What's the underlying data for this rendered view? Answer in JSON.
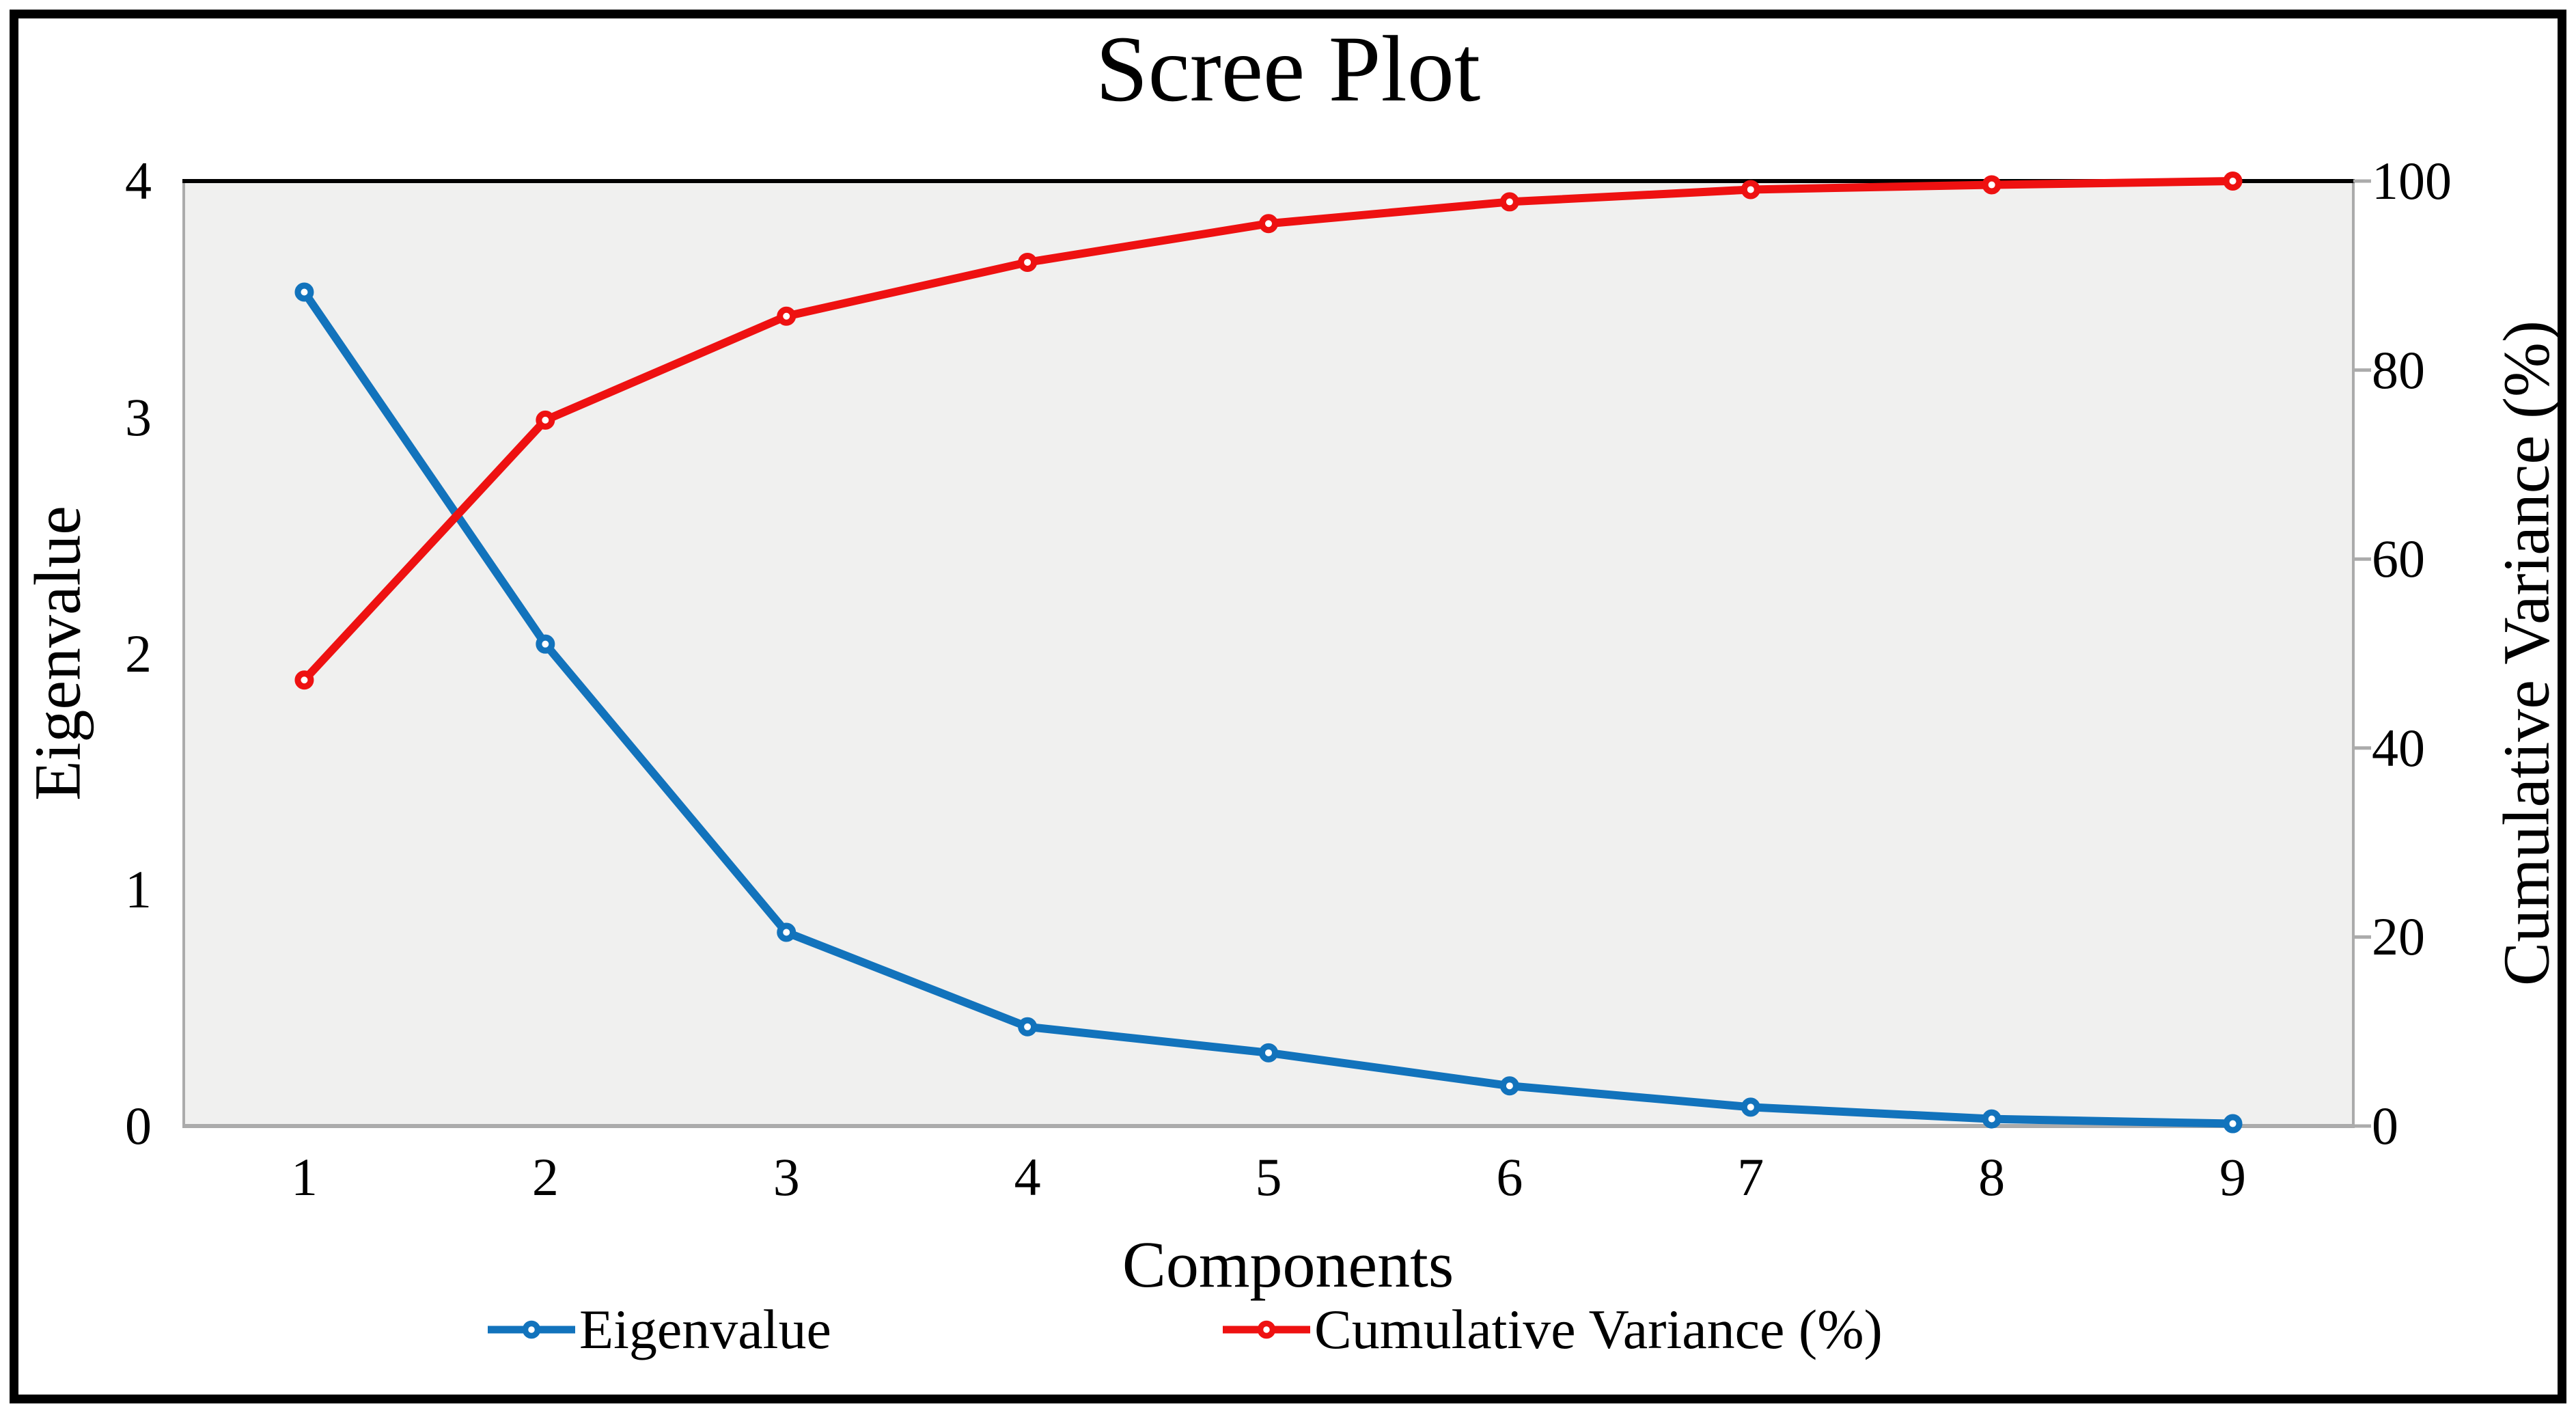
{
  "title": "Scree Plot",
  "axes": {
    "x_label": "Components",
    "y_left_label": "Eigenvalue",
    "y_right_label": "Cumulative Variance (%)",
    "x_ticks": [
      "1",
      "2",
      "3",
      "4",
      "5",
      "6",
      "7",
      "8",
      "9"
    ],
    "y_left_ticks": [
      "0",
      "1",
      "2",
      "3",
      "4"
    ],
    "y_right_ticks": [
      "0",
      "20",
      "40",
      "60",
      "80",
      "100"
    ]
  },
  "legend": {
    "items": [
      {
        "label": "Eigenvalue",
        "color": "#1273bc"
      },
      {
        "label": "Cumulative Variance (%)",
        "color": "#ee1111"
      }
    ]
  },
  "colors": {
    "eigenvalue_line": "#1273bc",
    "cumulative_line": "#ee1111",
    "plot_background": "#f0f0ef",
    "spine_gray": "#ababab",
    "top_spine": "#000000",
    "figure_border": "#000000"
  },
  "chart_data": {
    "type": "line",
    "title": "Scree Plot",
    "x": [
      1,
      2,
      3,
      4,
      5,
      6,
      7,
      8,
      9
    ],
    "xlabel": "Components",
    "ylabel_left": "Eigenvalue",
    "ylabel_right": "Cumulative Variance (%)",
    "ylim_left": [
      0,
      4
    ],
    "ylim_right": [
      0,
      100
    ],
    "grid": false,
    "legend_position": "bottom",
    "marker": "open-circle",
    "series": [
      {
        "name": "Eigenvalue",
        "axis": "left",
        "color": "#1273bc",
        "values": [
          3.53,
          2.04,
          0.82,
          0.42,
          0.31,
          0.17,
          0.08,
          0.03,
          0.01
        ]
      },
      {
        "name": "Cumulative Variance (%)",
        "axis": "right",
        "color": "#ee1111",
        "values": [
          47.2,
          74.7,
          85.7,
          91.4,
          95.5,
          97.8,
          99.1,
          99.6,
          100
        ]
      }
    ]
  }
}
